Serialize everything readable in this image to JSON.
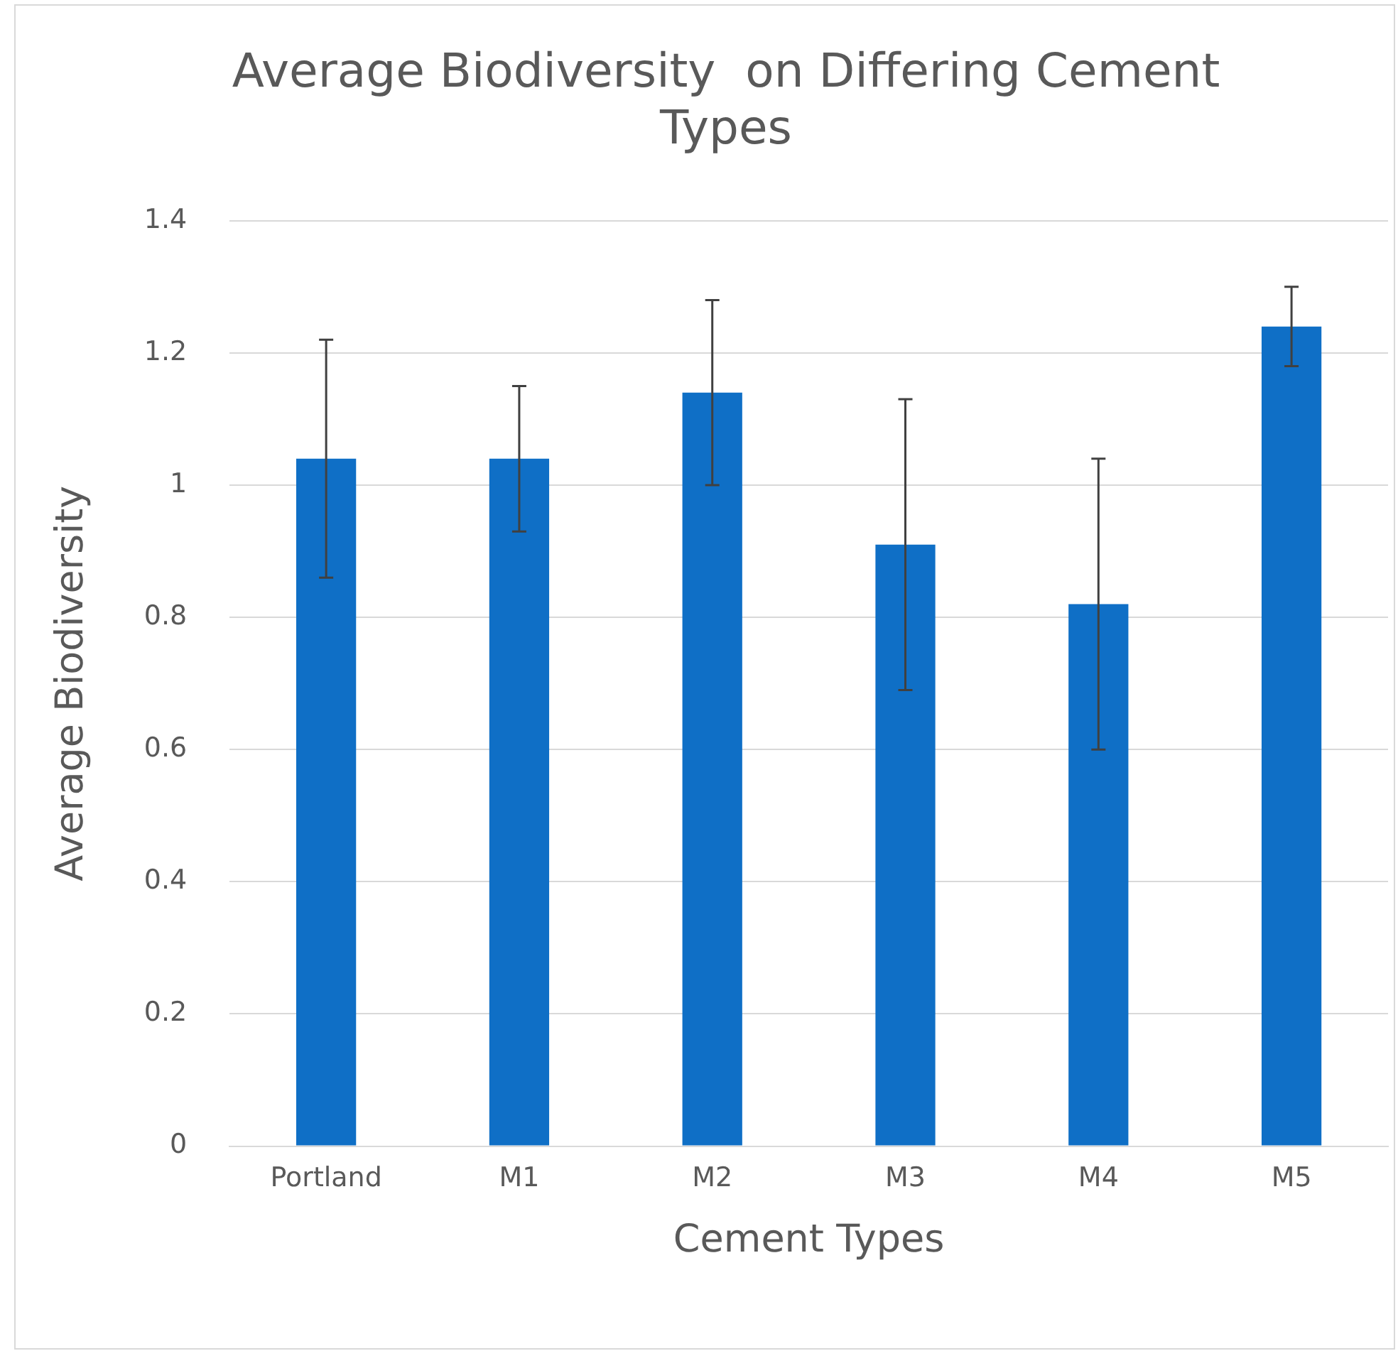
{
  "chart_data": {
    "type": "bar",
    "title": "Average Biodiversity  on Differing Cement Types",
    "xlabel": "Cement Types",
    "ylabel": "Average Biodiversity",
    "categories": [
      "Portland",
      "M1",
      "M2",
      "M3",
      "M4",
      "M5"
    ],
    "values": [
      1.04,
      1.04,
      1.14,
      0.91,
      0.82,
      1.24
    ],
    "errors": [
      0.18,
      0.11,
      0.14,
      0.22,
      0.22,
      0.06
    ],
    "color": "#0f6fc6",
    "ylim": [
      0,
      1.4
    ],
    "yticks": [
      0,
      0.2,
      0.4,
      0.6,
      0.8,
      1,
      1.2,
      1.4
    ],
    "grid": "y",
    "legend": false
  }
}
